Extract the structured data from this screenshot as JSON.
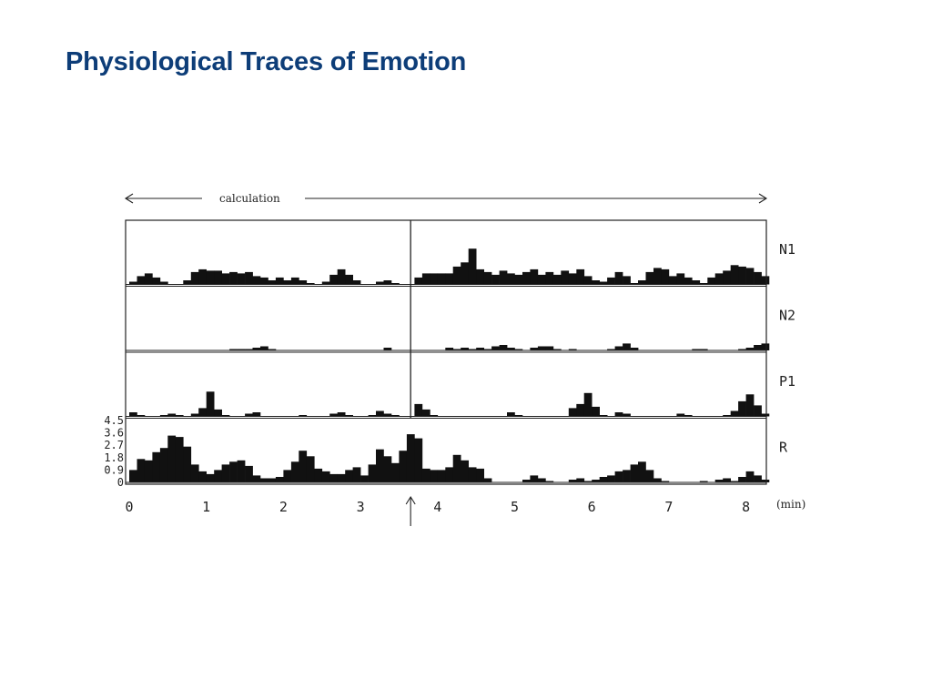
{
  "slide": {
    "title": "Physiological Traces of Emotion"
  },
  "chart_data": {
    "type": "bar",
    "annotation": "calculation",
    "xlabel": "(min)",
    "x_ticks": [
      "0",
      "1",
      "2",
      "3",
      "4",
      "5",
      "6",
      "7",
      "8"
    ],
    "xlim": [
      0,
      8.3
    ],
    "y_ticks": [
      "4.5",
      "3.6",
      "2.7",
      "1.8",
      "0.9",
      "0"
    ],
    "ylim": [
      0,
      4.5
    ],
    "event_marker_min": 3.65,
    "bin_width_min": 0.1,
    "colors": {
      "bars": "#111111",
      "axes": "#222222"
    },
    "series": [
      {
        "name": "N1",
        "values": [
          0.2,
          0.6,
          0.8,
          0.5,
          0.2,
          0,
          0,
          0.3,
          0.9,
          1.1,
          1.0,
          1.0,
          0.8,
          0.9,
          0.8,
          0.9,
          0.6,
          0.5,
          0.3,
          0.5,
          0.3,
          0.5,
          0.3,
          0.1,
          0,
          0.2,
          0.7,
          1.1,
          0.7,
          0.3,
          0,
          0,
          0.2,
          0.3,
          0.1,
          0,
          0,
          0.5,
          0.8,
          0.8,
          0.8,
          0.8,
          1.3,
          1.6,
          2.6,
          1.1,
          0.9,
          0.7,
          1.0,
          0.8,
          0.7,
          0.9,
          1.1,
          0.7,
          0.9,
          0.7,
          1.0,
          0.8,
          1.1,
          0.6,
          0.3,
          0.2,
          0.5,
          0.9,
          0.6,
          0.1,
          0.3,
          0.9,
          1.2,
          1.1,
          0.6,
          0.8,
          0.5,
          0.3,
          0.1,
          0.5,
          0.8,
          1.0,
          1.4,
          1.3,
          1.2,
          0.9,
          0.6
        ]
      },
      {
        "name": "N2",
        "values": [
          0,
          0,
          0,
          0,
          0,
          0,
          0,
          0,
          0,
          0,
          0,
          0,
          0,
          0.1,
          0.1,
          0.1,
          0.2,
          0.3,
          0.1,
          0,
          0,
          0,
          0,
          0,
          0,
          0,
          0,
          0,
          0,
          0,
          0,
          0,
          0,
          0.2,
          0,
          0,
          0,
          0,
          0,
          0,
          0,
          0.2,
          0.1,
          0.2,
          0.1,
          0.2,
          0.1,
          0.3,
          0.4,
          0.2,
          0.1,
          0,
          0.2,
          0.3,
          0.3,
          0.1,
          0,
          0.1,
          0,
          0,
          0,
          0,
          0.1,
          0.3,
          0.5,
          0.2,
          0,
          0,
          0,
          0,
          0,
          0,
          0,
          0.1,
          0.1,
          0,
          0,
          0,
          0,
          0.1,
          0.2,
          0.4,
          0.5
        ]
      },
      {
        "name": "P1",
        "values": [
          0.3,
          0.1,
          0,
          0,
          0.1,
          0.2,
          0.1,
          0,
          0.2,
          0.6,
          1.8,
          0.5,
          0.1,
          0,
          0,
          0.2,
          0.3,
          0,
          0,
          0,
          0,
          0,
          0.1,
          0,
          0,
          0,
          0.2,
          0.3,
          0.1,
          0,
          0,
          0.1,
          0.4,
          0.2,
          0.1,
          0,
          0,
          0.9,
          0.5,
          0.1,
          0,
          0,
          0,
          0,
          0,
          0,
          0,
          0,
          0,
          0.3,
          0.1,
          0,
          0,
          0,
          0,
          0,
          0,
          0.6,
          0.9,
          1.7,
          0.7,
          0.1,
          0,
          0.3,
          0.2,
          0,
          0,
          0,
          0,
          0,
          0,
          0.2,
          0.1,
          0,
          0,
          0,
          0,
          0.1,
          0.4,
          1.1,
          1.6,
          0.8,
          0.2
        ]
      },
      {
        "name": "R",
        "values": [
          0.9,
          1.7,
          1.6,
          2.2,
          2.5,
          3.4,
          3.3,
          2.6,
          1.3,
          0.8,
          0.6,
          0.9,
          1.3,
          1.5,
          1.6,
          1.2,
          0.5,
          0.3,
          0.3,
          0.4,
          0.9,
          1.5,
          2.3,
          1.9,
          1.0,
          0.8,
          0.6,
          0.6,
          0.9,
          1.1,
          0.5,
          1.3,
          2.4,
          1.9,
          1.4,
          2.3,
          3.5,
          3.2,
          1.0,
          0.9,
          0.9,
          1.1,
          2.0,
          1.6,
          1.1,
          1.0,
          0.3,
          0,
          0,
          0,
          0,
          0.2,
          0.5,
          0.3,
          0.1,
          0,
          0,
          0.2,
          0.3,
          0.1,
          0.2,
          0.4,
          0.5,
          0.8,
          0.9,
          1.3,
          1.5,
          0.9,
          0.3,
          0.1,
          0,
          0,
          0,
          0,
          0.1,
          0,
          0.2,
          0.3,
          0.1,
          0.4,
          0.8,
          0.5,
          0.2
        ]
      }
    ]
  }
}
